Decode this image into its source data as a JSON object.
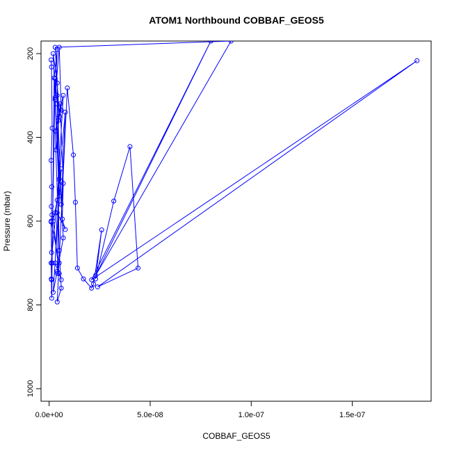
{
  "chart_data": {
    "type": "line",
    "title": "ATOM1 Northbound COBBAF_GEOS5",
    "xlabel": "COBBAF_GEOS5",
    "ylabel": "Pressure (mbar)",
    "xlim": [
      -4e-09,
      1.89e-07
    ],
    "ylim": [
      1030,
      170
    ],
    "y_reversed": true,
    "xticks": [
      0,
      5e-08,
      1e-07,
      1.5e-07
    ],
    "xtick_labels": [
      "0.0e+00",
      "5.0e-08",
      "1.0e-07",
      "1.5e-07"
    ],
    "yticks": [
      200,
      400,
      600,
      800,
      1000
    ],
    "ytick_labels": [
      "200",
      "400",
      "600",
      "800",
      "1000"
    ],
    "grid": false,
    "color": "#0000ff",
    "marker": "open-circle",
    "series": [
      {
        "x": [
          1e-09,
          1.2e-09,
          1.5e-09,
          1e-09,
          1.3e-09,
          1.1e-09,
          1.4e-09,
          1e-09,
          1.2e-09,
          1.5e-09,
          1.1e-09,
          1.3e-09,
          2.5e-09,
          4e-09,
          3e-09,
          5e-09,
          6e-09,
          4.5e-09,
          3.5e-09,
          5.5e-09,
          7e-09,
          6.5e-09,
          8e-09,
          4e-09,
          3e-09,
          6e-09,
          5e-09,
          2e-09,
          4e-09,
          7e-09,
          3e-09,
          5e-09,
          6e-09,
          4e-09,
          9e-09,
          1.2e-08,
          1.3e-08,
          1.4e-08,
          1.7e-08,
          2.1e-08,
          2.2e-08,
          2.6e-08,
          2.3e-08,
          3.2e-08,
          4e-08,
          4.4e-08,
          2.4e-08,
          1.82e-07,
          2.1e-08,
          8e-08,
          2.3e-08,
          9e-08,
          3e-09,
          5e-09,
          4e-09,
          6e-09,
          8e-09,
          1e-09,
          1.2e-09,
          3e-09,
          4e-09,
          5e-09,
          2e-09,
          4e-09,
          5e-09,
          1e-09,
          3e-09,
          6e-09,
          2e-09,
          4e-09,
          7e-09,
          3e-09,
          5e-09,
          4e-09
        ],
        "y": [
          215,
          232,
          378,
          455,
          518,
          565,
          585,
          602,
          675,
          700,
          738,
          784,
          258,
          190,
          305,
          185,
          335,
          360,
          430,
          320,
          510,
          595,
          620,
          580,
          700,
          740,
          725,
          600,
          550,
          300,
          385,
          670,
          760,
          793,
          282,
          442,
          555,
          712,
          738,
          760,
          750,
          621,
          738,
          552,
          422,
          712,
          757,
          217,
          740,
          170,
          730,
          170,
          185,
          350,
          300,
          560,
          340,
          700,
          740,
          260,
          320,
          540,
          200,
          270,
          700,
          600,
          580,
          475,
          770,
          720,
          640,
          310,
          500,
          725
        ]
      }
    ]
  }
}
